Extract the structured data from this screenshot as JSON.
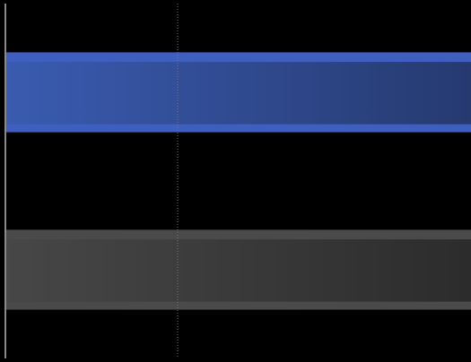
{
  "chart_data": {
    "type": "bar",
    "orientation": "horizontal",
    "categories": [
      "",
      ""
    ],
    "series": [
      {
        "values": [
          1.0,
          1.0
        ]
      }
    ],
    "bar_colors": [
      "#3a5bb0",
      "#474747"
    ],
    "bar_colors_dark": [
      "#263a70",
      "#2c2c2c"
    ],
    "bar_edge_colors": [
      "#3f5fc0",
      "#4a4a4a"
    ],
    "xlim": [
      0,
      1.0
    ],
    "reference_lines": [
      {
        "x": 0.37,
        "style": "dotted",
        "color": "#777777"
      }
    ],
    "grid": false,
    "legend": "none",
    "title": "",
    "xlabel": "",
    "ylabel": "",
    "background": "#000000",
    "axis_color": "#8a8a8a"
  }
}
